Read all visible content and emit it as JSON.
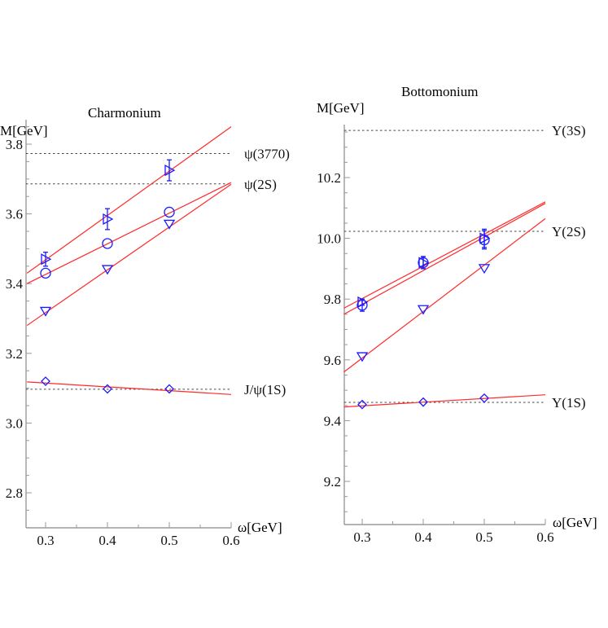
{
  "chart_data": [
    {
      "type": "scatter",
      "title": "Charmonium",
      "xlabel": "ω[GeV]",
      "ylabel": "M[GeV]",
      "xlim": [
        0.27,
        0.6
      ],
      "ylim": [
        2.7,
        3.86
      ],
      "x_ticks": [
        "0.3",
        "0.4",
        "0.5",
        "0.6"
      ],
      "y_ticks": [
        "2.8",
        "3.0",
        "3.2",
        "3.4",
        "3.6",
        "3.8"
      ],
      "grid": false,
      "reference_lines": [
        {
          "label": "ψ(3770)",
          "value": 3.773
        },
        {
          "label": "ψ(2S)",
          "value": 3.686
        },
        {
          "label": "J/ψ(1S)",
          "value": 3.097
        }
      ],
      "series": [
        {
          "name": "triangle-right",
          "marker": "triangle-right",
          "x": [
            0.3,
            0.4,
            0.5
          ],
          "y": [
            3.47,
            3.585,
            3.725
          ],
          "yerr": [
            0.02,
            0.03,
            0.03
          ],
          "fit": [
            [
              0.27,
              3.43
            ],
            [
              0.6,
              3.85
            ]
          ]
        },
        {
          "name": "circle",
          "marker": "circle",
          "x": [
            0.3,
            0.4,
            0.5
          ],
          "y": [
            3.43,
            3.515,
            3.605
          ],
          "fit": [
            [
              0.27,
              3.4
            ],
            [
              0.6,
              3.69
            ]
          ]
        },
        {
          "name": "triangle-down",
          "marker": "triangle-down",
          "x": [
            0.3,
            0.4,
            0.5
          ],
          "y": [
            3.32,
            3.44,
            3.57
          ],
          "fit": [
            [
              0.27,
              3.28
            ],
            [
              0.6,
              3.685
            ]
          ]
        },
        {
          "name": "diamond",
          "marker": "diamond",
          "x": [
            0.3,
            0.4,
            0.5
          ],
          "y": [
            3.12,
            3.098,
            3.098
          ],
          "fit": [
            [
              0.27,
              3.118
            ],
            [
              0.6,
              3.082
            ]
          ]
        }
      ]
    },
    {
      "type": "scatter",
      "title": "Bottomonium",
      "xlabel": "ω[GeV]",
      "ylabel": "M[GeV]",
      "xlim": [
        0.27,
        0.6
      ],
      "ylim": [
        9.07,
        10.385
      ],
      "x_ticks": [
        "0.3",
        "0.4",
        "0.5",
        "0.6"
      ],
      "y_ticks": [
        "9.2",
        "9.4",
        "9.6",
        "9.8",
        "10.0",
        "10.2"
      ],
      "grid": false,
      "reference_lines": [
        {
          "label": "Υ(3S)",
          "value": 10.355
        },
        {
          "label": "Υ(2S)",
          "value": 10.023
        },
        {
          "label": "Υ(1S)",
          "value": 9.46
        }
      ],
      "series": [
        {
          "name": "triangle-right",
          "marker": "triangle-right",
          "x": [
            0.3,
            0.4,
            0.5
          ],
          "y": [
            9.79,
            9.92,
            10.0
          ],
          "yerr": [
            0.01,
            0.02,
            0.03
          ],
          "fit": [
            [
              0.27,
              9.77
            ],
            [
              0.6,
              10.12
            ]
          ]
        },
        {
          "name": "circle",
          "marker": "circle",
          "x": [
            0.3,
            0.4,
            0.5
          ],
          "y": [
            9.78,
            9.92,
            9.995
          ],
          "yerr": [
            0.02,
            0.02,
            0.03
          ],
          "fit": [
            [
              0.27,
              9.75
            ],
            [
              0.6,
              10.115
            ]
          ]
        },
        {
          "name": "triangle-down",
          "marker": "triangle-down",
          "x": [
            0.3,
            0.4,
            0.5
          ],
          "y": [
            9.61,
            9.765,
            9.9
          ],
          "fit": [
            [
              0.27,
              9.56
            ],
            [
              0.6,
              10.065
            ]
          ]
        },
        {
          "name": "diamond",
          "marker": "diamond",
          "x": [
            0.3,
            0.4,
            0.5
          ],
          "y": [
            9.453,
            9.461,
            9.474
          ],
          "fit": [
            [
              0.27,
              9.445
            ],
            [
              0.6,
              9.485
            ]
          ]
        }
      ]
    }
  ],
  "panels": {
    "left": {
      "title": "Charmonium",
      "ylabel": "M[GeV]",
      "xlabel": "ω[GeV]"
    },
    "right": {
      "title": "Bottomonium",
      "ylabel": "M[GeV]",
      "xlabel": "ω[GeV]"
    }
  },
  "colors": {
    "fit": "#ff2a2a",
    "marker": "#1a1aff",
    "reference": "#444444"
  }
}
